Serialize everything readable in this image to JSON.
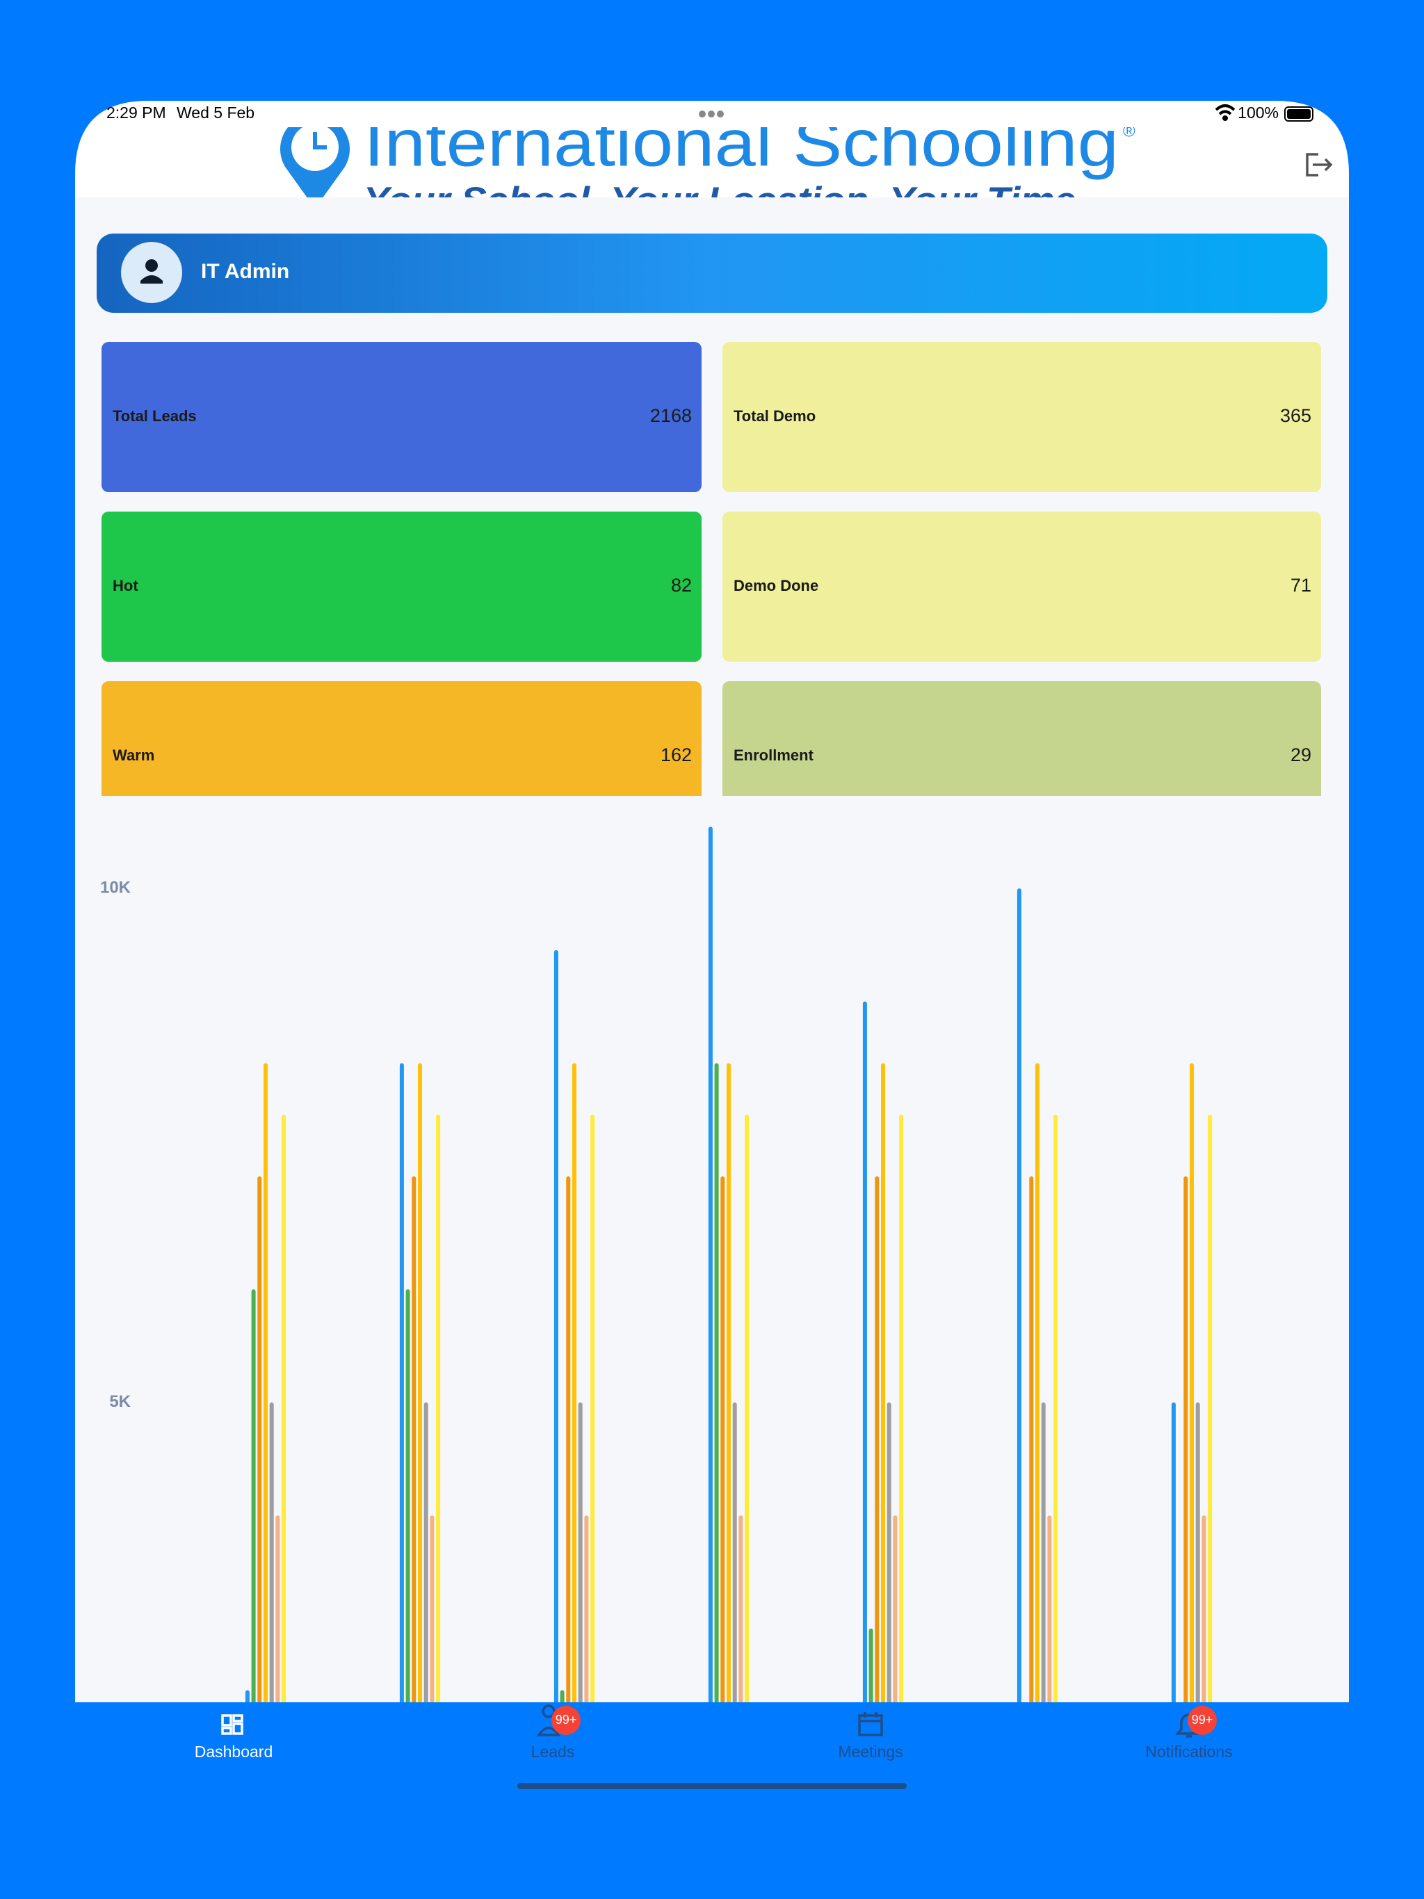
{
  "status_bar": {
    "time": "2:29 PM",
    "date": "Wed 5 Feb",
    "battery": "100%"
  },
  "header": {
    "logo_title": "International Schooling",
    "trademark": "®",
    "logo_tagline": "Your School. Your Location. Your Time."
  },
  "user": {
    "name": "IT Admin"
  },
  "stats": [
    {
      "label": "Total Leads",
      "value": 2168,
      "color": "#4169db"
    },
    {
      "label": "Total Demo",
      "value": 365,
      "color": "#f0f09c"
    },
    {
      "label": "Hot",
      "value": 82,
      "color": "#1ec74a"
    },
    {
      "label": "Demo Done",
      "value": 71,
      "color": "#f0f09c"
    },
    {
      "label": "Warm",
      "value": 162,
      "color": "#f6b727"
    },
    {
      "label": "Enrollment",
      "value": 29,
      "color": "#c6d58e"
    }
  ],
  "chart_data": {
    "type": "bar",
    "categories": [
      null,
      null,
      null,
      null,
      null,
      null,
      null
    ],
    "series": [
      {
        "color": "#2196f3",
        "values": [
          2200,
          8300,
          9400,
          10600,
          8900,
          10000,
          5000
        ]
      },
      {
        "color": "#4caf50",
        "values": [
          6100,
          6100,
          2200,
          8300,
          2800,
          0,
          0
        ]
      },
      {
        "color": "#f0950e",
        "values": [
          7200,
          7200,
          7200,
          7200,
          7200,
          7200,
          7200
        ]
      },
      {
        "color": "#ffc107",
        "values": [
          8300,
          8300,
          8300,
          8300,
          8300,
          8300,
          8300
        ]
      },
      {
        "color": "#9e9e9e",
        "values": [
          5000,
          5000,
          5000,
          5000,
          5000,
          5000,
          5000
        ]
      },
      {
        "color": "#f4b183",
        "values": [
          3900,
          3900,
          3900,
          3900,
          3900,
          3900,
          3900
        ]
      },
      {
        "color": "#ffeb3b",
        "values": [
          7800,
          7800,
          7800,
          7800,
          7800,
          7800,
          7800
        ]
      }
    ],
    "ylim": [
      0,
      10900
    ],
    "yticks": [
      {
        "value": 5000,
        "label": "5K"
      },
      {
        "value": 10000,
        "label": "10K"
      }
    ],
    "grid": false
  },
  "nav": {
    "items": [
      {
        "label": "Dashboard"
      },
      {
        "label": "Leads",
        "badge": "99+"
      },
      {
        "label": "Meetings"
      },
      {
        "label": "Notifications",
        "badge": "99+"
      }
    ]
  }
}
